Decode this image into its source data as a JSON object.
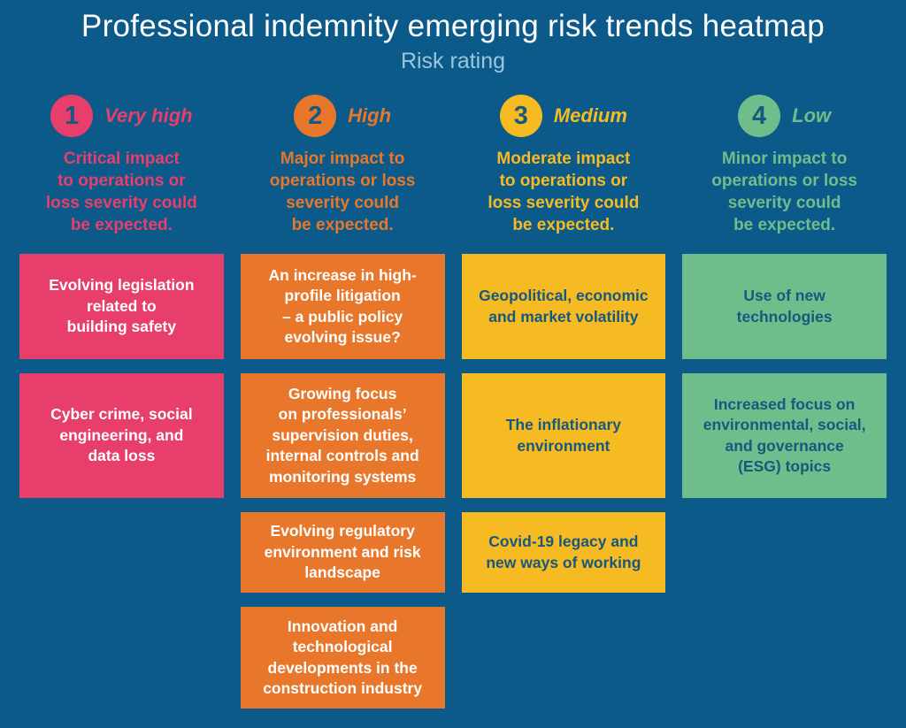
{
  "header": {
    "title": "Professional indemnity emerging risk trends heatmap",
    "subtitle": "Risk rating"
  },
  "colors": {
    "background": "#0B5A89",
    "very-high": "#E73E6C",
    "high": "#E8772B",
    "medium": "#F6BA22",
    "low": "#70BD8C",
    "dark-text": "#17587F",
    "subtitle-text": "#9CC6E0",
    "white-text": "#FFFFFF"
  },
  "ratings": [
    {
      "number": "1",
      "label": "Very high",
      "description": "Critical impact\nto operations or\nloss severity could\nbe expected."
    },
    {
      "number": "2",
      "label": "High",
      "description": "Major impact to\noperations or loss\nseverity could\nbe expected."
    },
    {
      "number": "3",
      "label": "Medium",
      "description": "Moderate impact\nto operations or\nloss severity could\nbe expected."
    },
    {
      "number": "4",
      "label": "Low",
      "description": "Minor impact to\noperations or loss\nseverity could\nbe expected."
    }
  ],
  "cells": [
    {
      "row": 1,
      "col": 1,
      "level": "very-high",
      "text": "Evolving legislation\nrelated to\nbuilding safety"
    },
    {
      "row": 2,
      "col": 1,
      "level": "very-high",
      "text": "Cyber crime, social\nengineering, and\ndata loss"
    },
    {
      "row": 1,
      "col": 2,
      "level": "high",
      "text": "An increase in high-\nprofile litigation\n– a public policy\nevolving issue?"
    },
    {
      "row": 2,
      "col": 2,
      "level": "high",
      "text": "Growing focus\non professionals’\nsupervision duties,\ninternal controls and\nmonitoring systems"
    },
    {
      "row": 3,
      "col": 2,
      "level": "high",
      "text": "Evolving regulatory\nenvironment and risk\nlandscape"
    },
    {
      "row": 4,
      "col": 2,
      "level": "high",
      "text": "Innovation and\ntechnological\ndevelopments in the\nconstruction industry"
    },
    {
      "row": 1,
      "col": 3,
      "level": "medium",
      "text": "Geopolitical, economic\nand market volatility"
    },
    {
      "row": 2,
      "col": 3,
      "level": "medium",
      "text": "The inflationary\nenvironment"
    },
    {
      "row": 3,
      "col": 3,
      "level": "medium",
      "text": "Covid-19 legacy and\nnew ways of working"
    },
    {
      "row": 1,
      "col": 4,
      "level": "low",
      "text": "Use of new\ntechnologies"
    },
    {
      "row": 2,
      "col": 4,
      "level": "low",
      "text": "Increased focus on\nenvironmental, social,\nand governance\n(ESG) topics"
    }
  ],
  "chart_data": {
    "type": "heatmap",
    "title": "Professional indemnity emerging risk trends heatmap",
    "subtitle": "Risk rating",
    "legend_position": "top",
    "columns": [
      {
        "rating": 1,
        "label": "Very high",
        "color": "#E73E6C",
        "impact": "Critical impact to operations or loss severity could be expected.",
        "items": [
          "Evolving legislation related to building safety",
          "Cyber crime, social engineering, and data loss"
        ]
      },
      {
        "rating": 2,
        "label": "High",
        "color": "#E8772B",
        "impact": "Major impact to operations or loss severity could be expected.",
        "items": [
          "An increase in high-profile litigation – a public policy evolving issue?",
          "Growing focus on professionals’ supervision duties, internal controls and monitoring systems",
          "Evolving regulatory environment and risk landscape",
          "Innovation and technological developments in the construction industry"
        ]
      },
      {
        "rating": 3,
        "label": "Medium",
        "color": "#F6BA22",
        "impact": "Moderate impact to operations or loss severity could be expected.",
        "items": [
          "Geopolitical, economic and market volatility",
          "The inflationary environment",
          "Covid-19 legacy and new ways of working"
        ]
      },
      {
        "rating": 4,
        "label": "Low",
        "color": "#70BD8C",
        "impact": "Minor impact to operations or loss severity could be expected.",
        "items": [
          "Use of new technologies",
          "Increased focus on environmental, social, and governance (ESG) topics"
        ]
      }
    ]
  }
}
